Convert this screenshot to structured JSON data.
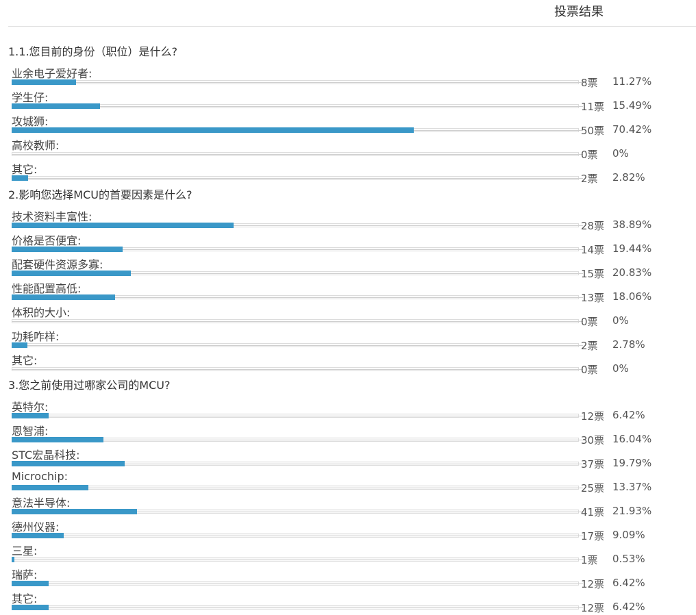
{
  "header": {
    "title": "投票结果"
  },
  "chart_data": {
    "type": "bar",
    "questions": [
      {
        "title": "1.1.您目前的身份（职位）是什么?",
        "options": [
          {
            "label": "业余电子爱好者:",
            "votes": 8,
            "votes_text": "8票",
            "percent": 11.27,
            "percent_text": "11.27%"
          },
          {
            "label": "学生仔:",
            "votes": 11,
            "votes_text": "11票",
            "percent": 15.49,
            "percent_text": "15.49%"
          },
          {
            "label": "攻城狮:",
            "votes": 50,
            "votes_text": "50票",
            "percent": 70.42,
            "percent_text": "70.42%"
          },
          {
            "label": "高校教师:",
            "votes": 0,
            "votes_text": "0票",
            "percent": 0,
            "percent_text": "0%"
          },
          {
            "label": "其它:",
            "votes": 2,
            "votes_text": "2票",
            "percent": 2.82,
            "percent_text": "2.82%"
          }
        ]
      },
      {
        "title": "2.影响您选择MCU的首要因素是什么?",
        "options": [
          {
            "label": "技术资料丰富性:",
            "votes": 28,
            "votes_text": "28票",
            "percent": 38.89,
            "percent_text": "38.89%"
          },
          {
            "label": "价格是否便宜:",
            "votes": 14,
            "votes_text": "14票",
            "percent": 19.44,
            "percent_text": "19.44%"
          },
          {
            "label": "配套硬件资源多寡:",
            "votes": 15,
            "votes_text": "15票",
            "percent": 20.83,
            "percent_text": "20.83%"
          },
          {
            "label": "性能配置高低:",
            "votes": 13,
            "votes_text": "13票",
            "percent": 18.06,
            "percent_text": "18.06%"
          },
          {
            "label": "体积的大小:",
            "votes": 0,
            "votes_text": "0票",
            "percent": 0,
            "percent_text": "0%"
          },
          {
            "label": "功耗咋样:",
            "votes": 2,
            "votes_text": "2票",
            "percent": 2.78,
            "percent_text": "2.78%"
          },
          {
            "label": "其它:",
            "votes": 0,
            "votes_text": "0票",
            "percent": 0,
            "percent_text": "0%"
          }
        ]
      },
      {
        "title": "3.您之前使用过哪家公司的MCU?",
        "options": [
          {
            "label": "英特尔:",
            "votes": 12,
            "votes_text": "12票",
            "percent": 6.42,
            "percent_text": "6.42%"
          },
          {
            "label": "恩智浦:",
            "votes": 30,
            "votes_text": "30票",
            "percent": 16.04,
            "percent_text": "16.04%"
          },
          {
            "label": "STC宏晶科技:",
            "votes": 37,
            "votes_text": "37票",
            "percent": 19.79,
            "percent_text": "19.79%"
          },
          {
            "label": "Microchip:",
            "votes": 25,
            "votes_text": "25票",
            "percent": 13.37,
            "percent_text": "13.37%"
          },
          {
            "label": "意法半导体:",
            "votes": 41,
            "votes_text": "41票",
            "percent": 21.93,
            "percent_text": "21.93%"
          },
          {
            "label": "德州仪器:",
            "votes": 17,
            "votes_text": "17票",
            "percent": 9.09,
            "percent_text": "9.09%"
          },
          {
            "label": "三星:",
            "votes": 1,
            "votes_text": "1票",
            "percent": 0.53,
            "percent_text": "0.53%"
          },
          {
            "label": "瑞萨:",
            "votes": 12,
            "votes_text": "12票",
            "percent": 6.42,
            "percent_text": "6.42%"
          },
          {
            "label": "其它:",
            "votes": 12,
            "votes_text": "12票",
            "percent": 6.42,
            "percent_text": "6.42%"
          }
        ]
      }
    ]
  }
}
